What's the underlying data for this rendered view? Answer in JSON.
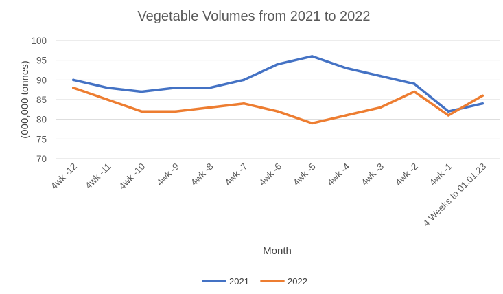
{
  "chart_data": {
    "type": "line",
    "title": "Vegetable Volumes from 2021 to 2022",
    "xlabel": "Month",
    "ylabel": "(000,000 tonnes)",
    "categories": [
      "4wk -12",
      "4wk -11",
      "4wk -10",
      "4wk -9",
      "4wk -8",
      "4wk -7",
      "4wk -6",
      "4wk -5",
      "4wk -4",
      "4wk -3",
      "4wk -2",
      "4wk -1",
      "4 Weeks to 01.01.23"
    ],
    "ylim": [
      70,
      100
    ],
    "yticks": [
      "70",
      "75",
      "80",
      "85",
      "90",
      "95",
      "100"
    ],
    "grid": true,
    "legend_position": "bottom",
    "series": [
      {
        "name": "2021",
        "color": "#4472C4",
        "values": [
          90,
          88,
          87,
          88,
          88,
          90,
          94,
          96,
          93,
          91,
          89,
          82,
          84
        ]
      },
      {
        "name": "2022",
        "color": "#ED7D31",
        "values": [
          88,
          85,
          82,
          82,
          83,
          84,
          82,
          79,
          81,
          83,
          87,
          81,
          86
        ]
      }
    ]
  }
}
